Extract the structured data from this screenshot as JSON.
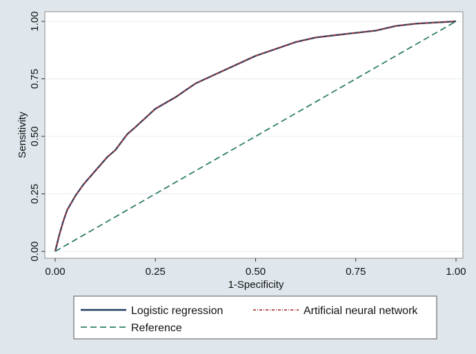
{
  "chart_data": {
    "type": "line",
    "title": "",
    "xlabel": "1-Specificity",
    "ylabel": "Sensitivity",
    "xlim": [
      0,
      1
    ],
    "ylim": [
      0,
      1
    ],
    "x_ticks": [
      0,
      0.25,
      0.5,
      0.75,
      1
    ],
    "y_ticks": [
      0,
      0.25,
      0.5,
      0.75,
      1
    ],
    "x_tick_labels": [
      "0.00",
      "0.25",
      "0.50",
      "0.75",
      "1.00"
    ],
    "y_tick_labels": [
      "0.00",
      "0.25",
      "0.50",
      "0.75",
      "1.00"
    ],
    "grid": true,
    "legend_position": "bottom",
    "series": [
      {
        "name": "Logistic regression",
        "color": "#1f3a5f",
        "style": "solid",
        "x": [
          0,
          0.01,
          0.02,
          0.03,
          0.05,
          0.07,
          0.1,
          0.13,
          0.15,
          0.18,
          0.2,
          0.25,
          0.3,
          0.35,
          0.4,
          0.45,
          0.5,
          0.55,
          0.6,
          0.65,
          0.7,
          0.75,
          0.8,
          0.85,
          0.9,
          0.95,
          1
        ],
        "y": [
          0,
          0.07,
          0.13,
          0.18,
          0.24,
          0.29,
          0.35,
          0.41,
          0.44,
          0.51,
          0.54,
          0.62,
          0.67,
          0.73,
          0.77,
          0.81,
          0.85,
          0.88,
          0.91,
          0.93,
          0.94,
          0.95,
          0.96,
          0.98,
          0.99,
          0.995,
          1
        ]
      },
      {
        "name": "Artificial neural network",
        "color": "#b03a3a",
        "style": "dash-dot",
        "x": [
          0,
          0.01,
          0.02,
          0.03,
          0.05,
          0.07,
          0.1,
          0.13,
          0.15,
          0.18,
          0.2,
          0.25,
          0.3,
          0.35,
          0.4,
          0.45,
          0.5,
          0.55,
          0.6,
          0.65,
          0.7,
          0.75,
          0.8,
          0.85,
          0.9,
          0.95,
          1
        ],
        "y": [
          0,
          0.07,
          0.13,
          0.18,
          0.24,
          0.29,
          0.35,
          0.41,
          0.44,
          0.51,
          0.54,
          0.62,
          0.67,
          0.73,
          0.77,
          0.81,
          0.85,
          0.88,
          0.91,
          0.93,
          0.94,
          0.95,
          0.96,
          0.98,
          0.99,
          0.995,
          1
        ]
      },
      {
        "name": "Reference",
        "color": "#2e7d6b",
        "style": "dashed",
        "x": [
          0,
          1
        ],
        "y": [
          0,
          1
        ]
      }
    ]
  }
}
